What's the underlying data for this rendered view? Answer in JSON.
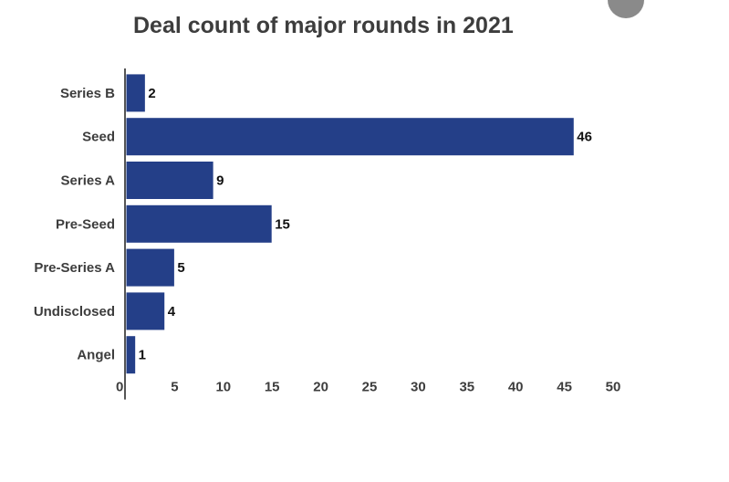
{
  "menu": {
    "icon": "more-horizontal-icon",
    "label": "⋯"
  },
  "colors": {
    "bar": "#243f88",
    "axis": "#555555",
    "text": "#3d3d3d",
    "menu": "#8a8a8a"
  },
  "chart_data": {
    "type": "bar",
    "orientation": "horizontal",
    "title": "Deal count of major rounds in 2021",
    "xlabel": "",
    "ylabel": "",
    "categories": [
      "Series B",
      "Seed",
      "Series A",
      "Pre-Seed",
      "Pre-Series A",
      "Undisclosed",
      "Angel"
    ],
    "values": [
      2,
      46,
      9,
      15,
      5,
      4,
      1
    ],
    "xlim": [
      0,
      50
    ],
    "xticks": [
      0,
      5,
      10,
      15,
      20,
      25,
      30,
      35,
      40,
      45,
      50
    ],
    "grid": false,
    "data_labels": true
  }
}
